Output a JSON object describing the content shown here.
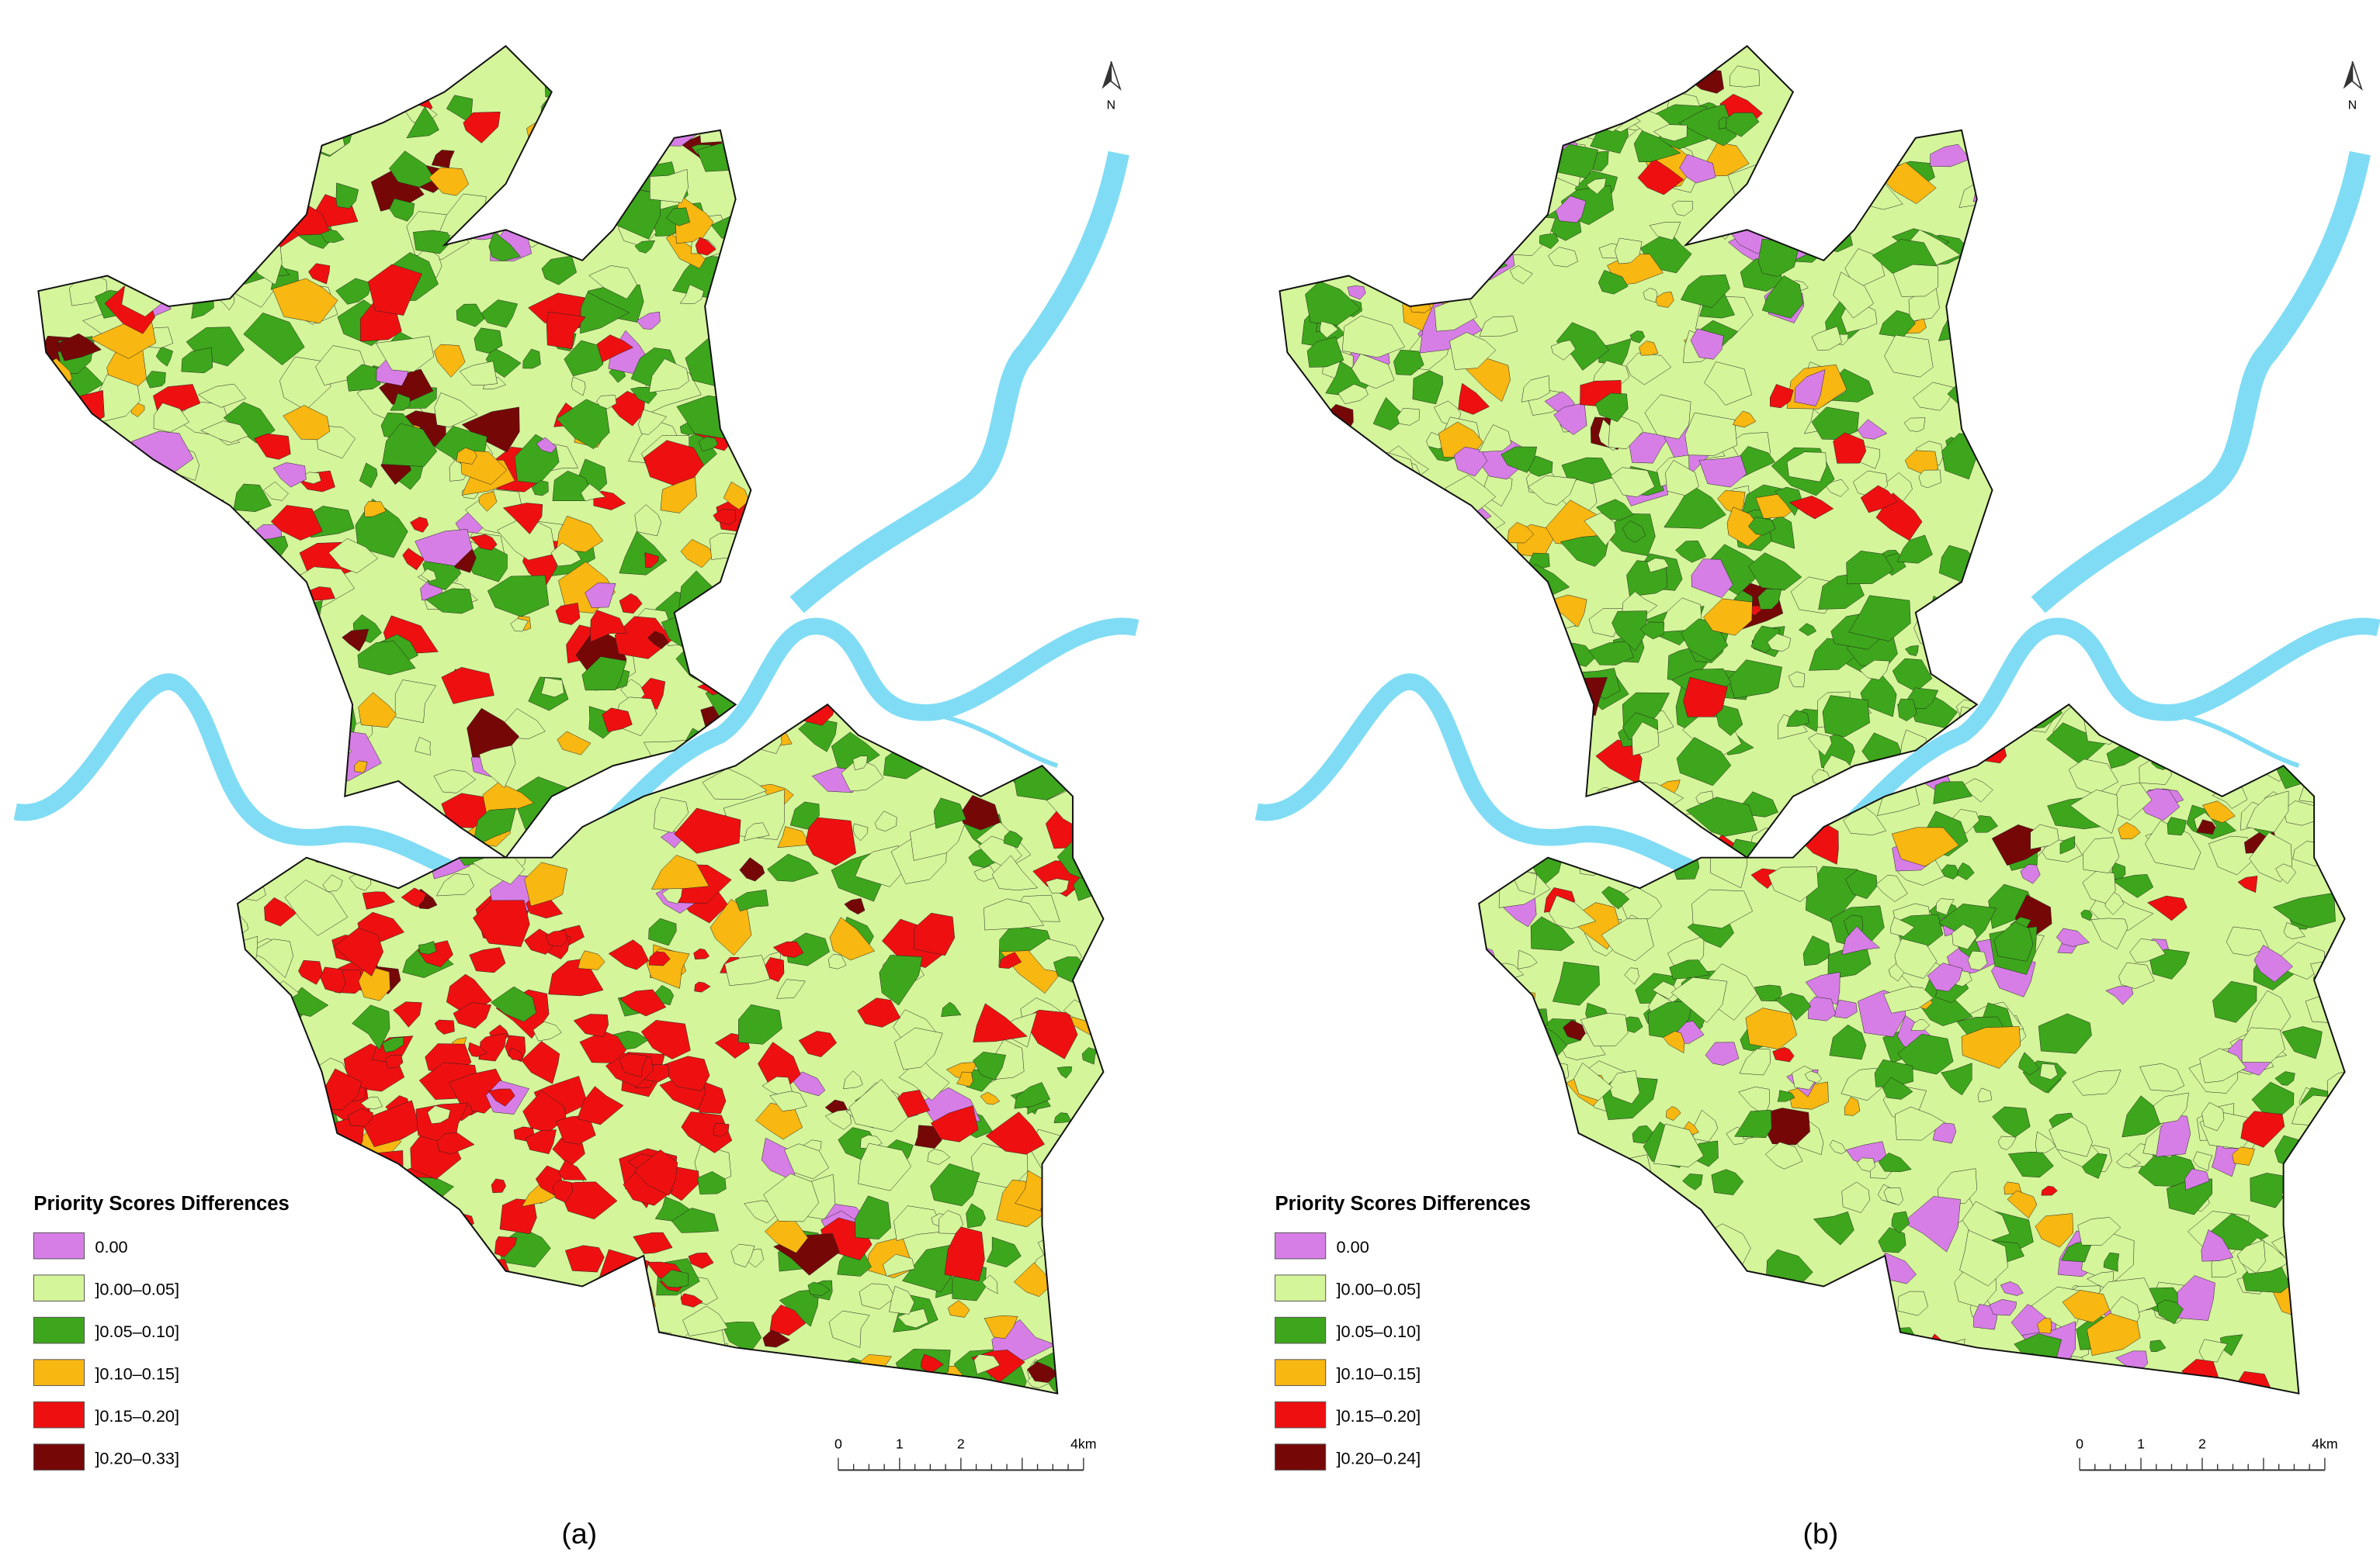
{
  "panels": [
    {
      "caption": "(a)",
      "north": "N",
      "legend": {
        "title": "Priority Scores Differences",
        "items": [
          {
            "label": "0.00",
            "color": "#d77ee6"
          },
          {
            "label": "]0.00–0.05]",
            "color": "#d4f59a"
          },
          {
            "label": "]0.05–0.10]",
            "color": "#3ea61c"
          },
          {
            "label": "]0.10–0.15]",
            "color": "#f9b712"
          },
          {
            "label": "]0.15–0.20]",
            "color": "#ee1010"
          },
          {
            "label": "]0.20–0.33]",
            "color": "#760707"
          }
        ]
      },
      "scale_bar": [
        "0",
        "1",
        "2",
        "4km"
      ]
    },
    {
      "caption": "(b)",
      "north": "N",
      "legend": {
        "title": "Priority Scores Differences",
        "items": [
          {
            "label": "0.00",
            "color": "#d77ee6"
          },
          {
            "label": "]0.00–0.05]",
            "color": "#d4f59a"
          },
          {
            "label": "]0.05–0.10]",
            "color": "#3ea61c"
          },
          {
            "label": "]0.10–0.15]",
            "color": "#f9b712"
          },
          {
            "label": "]0.15–0.20]",
            "color": "#ee1010"
          },
          {
            "label": "]0.20–0.24]",
            "color": "#760707"
          }
        ]
      },
      "scale_bar": [
        "0",
        "1",
        "2",
        "4km"
      ]
    }
  ]
}
